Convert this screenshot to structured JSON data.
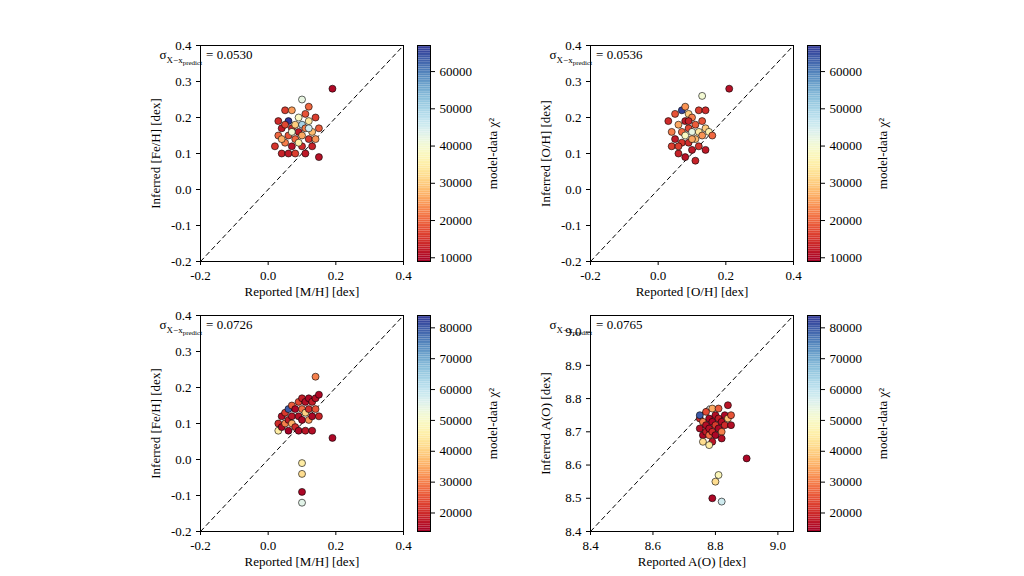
{
  "chart_data": [
    {
      "type": "scatter",
      "marker": "circle",
      "annotation": {
        "symbol": "σ",
        "subscript": "X−x",
        "subscript_2": "predict",
        "text": "= 0.0530"
      },
      "x_label": "Reported [M/H] [dex]",
      "y_label": "Inferred [Fe/H] [dex]",
      "x": [
        0.02,
        0.03,
        0.03,
        0.04,
        0.04,
        0.05,
        0.05,
        0.06,
        0.06,
        0.06,
        0.07,
        0.07,
        0.07,
        0.08,
        0.08,
        0.08,
        0.09,
        0.09,
        0.1,
        0.1,
        0.1,
        0.1,
        0.11,
        0.11,
        0.11,
        0.12,
        0.12,
        0.12,
        0.13,
        0.13,
        0.14,
        0.14,
        0.15,
        0.15,
        0.09,
        0.07,
        0.05,
        0.12,
        0.19,
        0.04
      ],
      "y": [
        0.12,
        0.19,
        0.15,
        0.17,
        0.1,
        0.22,
        0.13,
        0.19,
        0.15,
        0.1,
        0.22,
        0.17,
        0.12,
        0.14,
        0.18,
        0.1,
        0.16,
        0.2,
        0.25,
        0.18,
        0.15,
        0.12,
        0.21,
        0.17,
        0.1,
        0.19,
        0.14,
        0.23,
        0.16,
        0.12,
        0.2,
        0.14,
        0.17,
        0.09,
        0.13,
        0.16,
        0.18,
        0.17,
        0.28,
        0.14
      ],
      "color_values": [
        15000,
        14000,
        20000,
        12000,
        13000,
        16000,
        22000,
        67000,
        18000,
        12000,
        25000,
        14000,
        11000,
        20000,
        30000,
        16000,
        12000,
        38000,
        42000,
        50000,
        26000,
        14000,
        18000,
        22000,
        12000,
        34000,
        15000,
        20000,
        28000,
        13000,
        16000,
        24000,
        19000,
        11000,
        35000,
        40000,
        17000,
        45000,
        10000,
        27000
      ],
      "xlim": [
        -0.2,
        0.4
      ],
      "xticks": [
        -0.2,
        {
          "value": 0,
          "label": "0.0"
        },
        0.2,
        0.4
      ],
      "ylim": [
        -0.2,
        0.4
      ],
      "yticks": [
        -0.2,
        -0.1,
        {
          "value": 0,
          "label": "0.0"
        },
        0.1,
        0.2,
        0.3,
        0.4
      ],
      "colorbar": {
        "label": "model-data χ²",
        "range": [
          9000,
          67000
        ],
        "ticks": [
          10000,
          20000,
          30000,
          40000,
          50000,
          60000
        ]
      }
    },
    {
      "type": "scatter",
      "marker": "circle",
      "annotation": {
        "symbol": "σ",
        "subscript": "X−x",
        "subscript_2": "predict",
        "text": "= 0.0536"
      },
      "x_label": "Reported [O/H] [dex]",
      "y_label": "Inferred [O/H] [dex]",
      "x": [
        0.03,
        0.04,
        0.04,
        0.05,
        0.05,
        0.06,
        0.06,
        0.07,
        0.07,
        0.07,
        0.08,
        0.08,
        0.08,
        0.08,
        0.09,
        0.09,
        0.09,
        0.1,
        0.1,
        0.1,
        0.11,
        0.11,
        0.11,
        0.12,
        0.12,
        0.12,
        0.13,
        0.13,
        0.13,
        0.14,
        0.14,
        0.14,
        0.15,
        0.16,
        0.06,
        0.1,
        0.09,
        0.21
      ],
      "y": [
        0.19,
        0.12,
        0.16,
        0.21,
        0.14,
        0.18,
        0.1,
        0.22,
        0.16,
        0.13,
        0.23,
        0.19,
        0.15,
        0.09,
        0.21,
        0.17,
        0.13,
        0.2,
        0.16,
        0.11,
        0.18,
        0.14,
        0.08,
        0.22,
        0.16,
        0.12,
        0.26,
        0.19,
        0.15,
        0.22,
        0.17,
        0.11,
        0.16,
        0.15,
        0.12,
        0.14,
        0.19,
        0.28
      ],
      "color_values": [
        14000,
        16000,
        22000,
        18000,
        12000,
        26000,
        13000,
        66000,
        20000,
        15000,
        24000,
        12000,
        38000,
        11000,
        30000,
        17000,
        14000,
        22000,
        42000,
        12000,
        19000,
        28000,
        13000,
        16000,
        34000,
        15000,
        40000,
        18000,
        24000,
        14000,
        30000,
        12000,
        36000,
        20000,
        16000,
        26000,
        13000,
        11000
      ],
      "xlim": [
        -0.2,
        0.4
      ],
      "xticks": [
        -0.2,
        {
          "value": 0,
          "label": "0.0"
        },
        0.2,
        0.4
      ],
      "ylim": [
        -0.2,
        0.4
      ],
      "yticks": [
        -0.2,
        -0.1,
        {
          "value": 0,
          "label": "0.0"
        },
        0.1,
        0.2,
        0.3,
        0.4
      ],
      "colorbar": {
        "label": "model-data χ²",
        "range": [
          9000,
          67000
        ],
        "ticks": [
          10000,
          20000,
          30000,
          40000,
          50000,
          60000
        ]
      }
    },
    {
      "type": "scatter",
      "marker": "circle",
      "annotation": {
        "symbol": "σ",
        "subscript": "X−x",
        "subscript_2": "predict",
        "text": "= 0.0726"
      },
      "x_label": "Reported [M/H] [dex]",
      "y_label": "Inferred [Fe/H] [dex]",
      "x": [
        0.03,
        0.03,
        0.04,
        0.04,
        0.05,
        0.05,
        0.06,
        0.06,
        0.06,
        0.07,
        0.07,
        0.07,
        0.08,
        0.08,
        0.09,
        0.09,
        0.09,
        0.1,
        0.1,
        0.1,
        0.11,
        0.11,
        0.11,
        0.12,
        0.12,
        0.12,
        0.13,
        0.13,
        0.14,
        0.14,
        0.14,
        0.15,
        0.15,
        0.13,
        0.1,
        0.1,
        0.1,
        0.1,
        0.19
      ],
      "y": [
        0.1,
        0.08,
        0.12,
        0.09,
        0.13,
        0.1,
        0.14,
        0.11,
        0.08,
        0.15,
        0.12,
        0.1,
        0.14,
        0.09,
        0.16,
        0.12,
        0.08,
        0.17,
        0.14,
        0.11,
        0.16,
        0.13,
        0.08,
        0.17,
        0.14,
        0.11,
        0.16,
        0.12,
        0.17,
        0.14,
        0.23,
        0.18,
        0.12,
        0.08,
        -0.01,
        -0.04,
        -0.09,
        -0.12,
        0.06
      ],
      "color_values": [
        20000,
        45000,
        16000,
        15000,
        22000,
        30000,
        80000,
        18000,
        14000,
        26000,
        17000,
        35000,
        15000,
        20000,
        24000,
        16000,
        15000,
        18000,
        28000,
        15000,
        16000,
        40000,
        17000,
        15000,
        20000,
        32000,
        18000,
        15000,
        16000,
        25000,
        30000,
        15000,
        19000,
        16000,
        45000,
        42000,
        15000,
        55000,
        15000
      ],
      "xlim": [
        -0.2,
        0.4
      ],
      "xticks": [
        -0.2,
        {
          "value": 0,
          "label": "0.0"
        },
        0.2,
        0.4
      ],
      "ylim": [
        -0.2,
        0.4
      ],
      "yticks": [
        -0.2,
        -0.1,
        {
          "value": 0,
          "label": "0.0"
        },
        0.1,
        0.2,
        0.3,
        0.4
      ],
      "colorbar": {
        "label": "model-data χ²",
        "range": [
          14000,
          84000
        ],
        "ticks": [
          20000,
          30000,
          40000,
          50000,
          60000,
          70000,
          80000
        ]
      }
    },
    {
      "type": "scatter",
      "marker": "circle",
      "annotation": {
        "symbol": "σ",
        "subscript": "X−x",
        "subscript_2": "predict",
        "text": "= 0.0765"
      },
      "x_label": "Reported A(O) [dex]",
      "y_label": "Inferred A(O) [dex]",
      "x": [
        8.75,
        8.75,
        8.75,
        8.76,
        8.76,
        8.76,
        8.77,
        8.77,
        8.77,
        8.78,
        8.78,
        8.78,
        8.79,
        8.79,
        8.79,
        8.79,
        8.8,
        8.8,
        8.8,
        8.81,
        8.81,
        8.81,
        8.82,
        8.82,
        8.83,
        8.83,
        8.84,
        8.84,
        8.85,
        8.85,
        8.78,
        8.82,
        8.81,
        8.8,
        8.79,
        8.82,
        8.9
      ],
      "y": [
        8.74,
        8.71,
        8.75,
        8.69,
        8.73,
        8.67,
        8.72,
        8.7,
        8.76,
        8.74,
        8.69,
        8.71,
        8.77,
        8.73,
        8.7,
        8.67,
        8.75,
        8.72,
        8.69,
        8.74,
        8.71,
        8.77,
        8.73,
        8.7,
        8.75,
        8.72,
        8.78,
        8.74,
        8.72,
        8.75,
        8.66,
        8.68,
        8.57,
        8.55,
        8.5,
        8.49,
        8.62
      ],
      "color_values": [
        20000,
        16000,
        80000,
        15000,
        30000,
        42000,
        16000,
        18000,
        24000,
        15000,
        28000,
        16000,
        35000,
        15000,
        20000,
        17000,
        16000,
        22000,
        15000,
        18000,
        15000,
        26000,
        16000,
        30000,
        15000,
        20000,
        17000,
        38000,
        16000,
        25000,
        45000,
        16000,
        48000,
        42000,
        15000,
        58000,
        15000
      ],
      "xlim": [
        8.4,
        9.05
      ],
      "xticks": [
        8.4,
        8.6,
        8.8,
        {
          "value": 9,
          "label": "9.0"
        }
      ],
      "ylim": [
        8.4,
        9.05
      ],
      "yticks": [
        8.4,
        8.5,
        8.6,
        8.7,
        8.8,
        8.9,
        {
          "value": 9,
          "label": "9.0"
        }
      ],
      "colorbar": {
        "label": "model-data χ²",
        "range": [
          14000,
          84000
        ],
        "ticks": [
          20000,
          30000,
          40000,
          50000,
          60000,
          70000,
          80000
        ]
      }
    }
  ]
}
